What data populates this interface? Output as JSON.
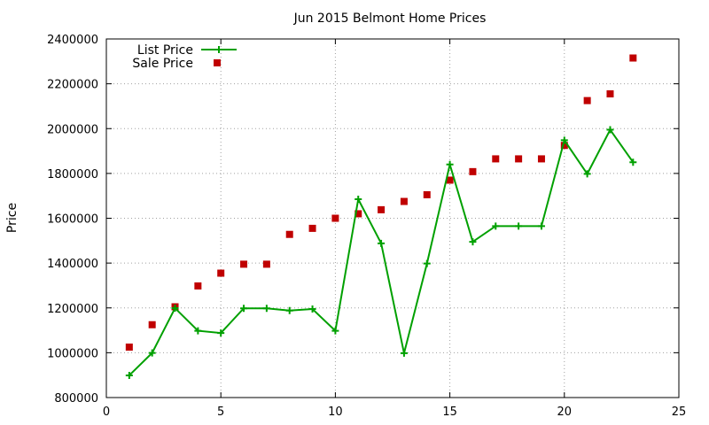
{
  "chart_data": {
    "type": "line",
    "title": "Jun 2015 Belmont Home Prices",
    "xlabel": "",
    "ylabel": "Price",
    "xlim": [
      0,
      25
    ],
    "ylim": [
      800000,
      2400000
    ],
    "xticks": [
      0,
      5,
      10,
      15,
      20,
      25
    ],
    "yticks": [
      800000,
      1000000,
      1200000,
      1400000,
      1600000,
      1800000,
      2000000,
      2200000,
      2400000
    ],
    "grid": true,
    "legend_position": "top-left",
    "x": [
      1,
      2,
      3,
      4,
      5,
      6,
      7,
      8,
      9,
      10,
      11,
      12,
      13,
      14,
      15,
      16,
      17,
      18,
      19,
      20,
      21,
      22,
      23
    ],
    "series": [
      {
        "name": "List Price",
        "style": "line+plus",
        "color": "#00a000",
        "values": [
          899000,
          999000,
          1199000,
          1098000,
          1088000,
          1198000,
          1198000,
          1188000,
          1195000,
          1098000,
          1685000,
          1488000,
          998000,
          1398000,
          1840000,
          1495000,
          1565000,
          1565000,
          1565000,
          1948000,
          1798000,
          1995000,
          1850000
        ]
      },
      {
        "name": "Sale Price",
        "style": "square",
        "color": "#c00000",
        "values": [
          1025000,
          1125000,
          1205000,
          1298000,
          1355000,
          1395000,
          1395000,
          1528000,
          1555000,
          1600000,
          1620000,
          1638000,
          1675000,
          1705000,
          1770000,
          1808000,
          1865000,
          1865000,
          1865000,
          1925000,
          2125000,
          2155000,
          2315000
        ]
      }
    ]
  }
}
